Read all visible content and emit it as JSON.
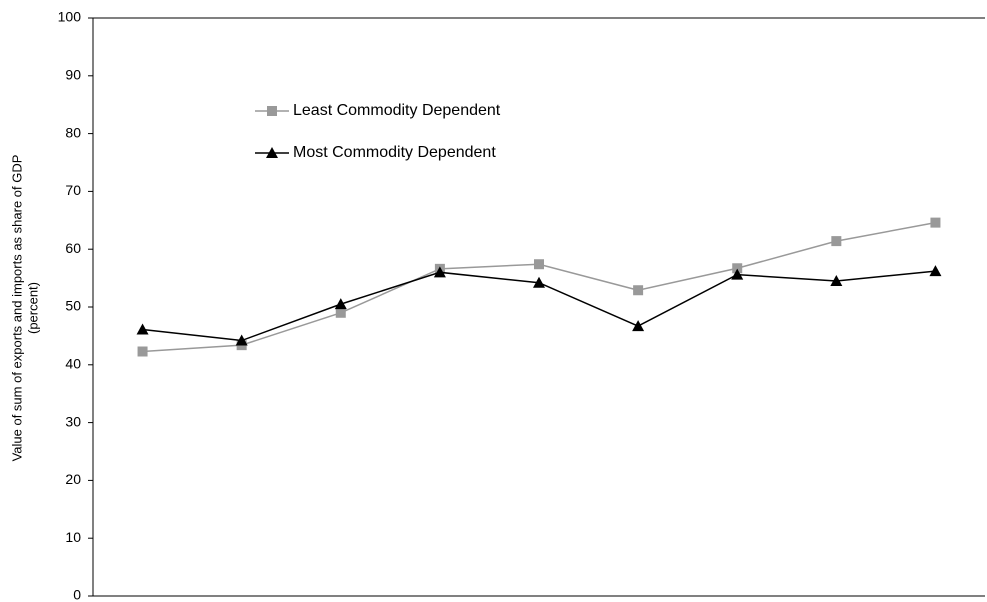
{
  "chart_data": {
    "type": "line",
    "y_label": [
      "Value of sum of exports and imports as share of GDP",
      "(percent)"
    ],
    "categories": [
      null,
      null,
      null,
      null,
      null,
      null,
      null,
      null,
      null
    ],
    "series": [
      {
        "name": "Least Commodity Dependent",
        "color": "#999999",
        "marker": "square",
        "values": [
          42.3,
          43.4,
          49.0,
          56.6,
          57.4,
          52.9,
          56.7,
          61.4,
          64.6
        ]
      },
      {
        "name": "Most Commodity Dependent",
        "color": "#000000",
        "marker": "triangle",
        "values": [
          46.1,
          44.2,
          50.5,
          56.0,
          54.2,
          46.7,
          55.6,
          54.5,
          56.2
        ]
      }
    ],
    "ylim": [
      0,
      100
    ],
    "yticks": [
      0,
      10,
      20,
      30,
      40,
      50,
      60,
      70,
      80,
      90,
      100
    ],
    "grid": false
  }
}
